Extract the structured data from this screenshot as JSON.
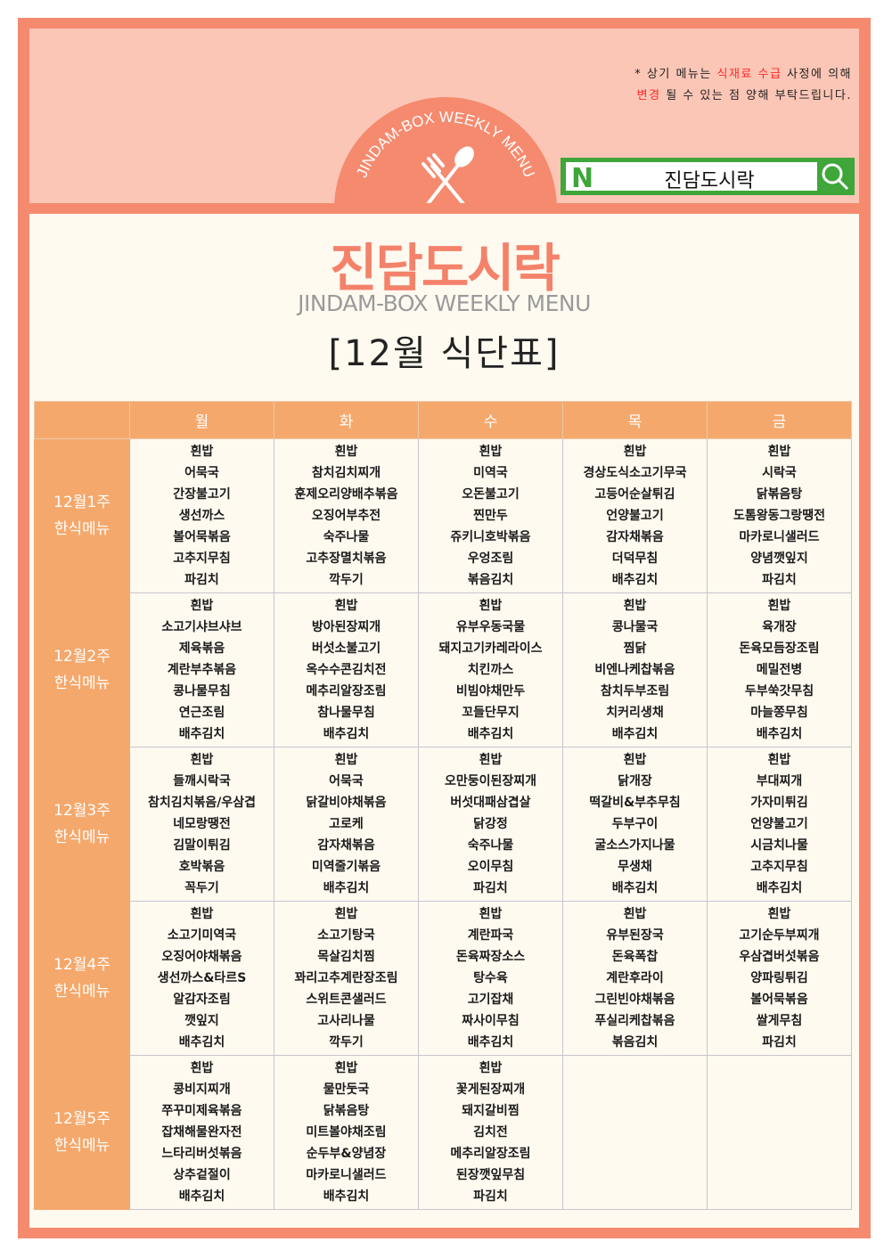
{
  "notice": {
    "line1_a": "* 상기 메뉴는 ",
    "line1_red": "식재료 수급",
    "line1_b": " 사정에 의해",
    "line2_red": "변경",
    "line2_b": " 될 수 있는 점 양해 부탁드립니다."
  },
  "badge": {
    "arc_text": "JINDAM-BOX WEEKLY MENU",
    "icon": "fork-spoon-icon"
  },
  "search": {
    "logo": "N",
    "query": "진담도시락",
    "icon": "search-icon"
  },
  "brand": {
    "logo": "진담도시락",
    "subtitle": "JINDAM-BOX WEEKLY MENU",
    "title": "[12월 식단표]"
  },
  "colors": {
    "frame": "#f58a6f",
    "header_bg": "#fcc6b6",
    "body_bg": "#fffaf0",
    "table_header": "#f5a86c",
    "search_green": "#3fa63a",
    "notice_red": "#ff2a2a"
  },
  "days": [
    "월",
    "화",
    "수",
    "목",
    "금"
  ],
  "weeks": [
    {
      "label1": "12월1주",
      "label2": "한식메뉴",
      "days": [
        [
          "흰밥",
          "어묵국",
          "간장불고기",
          "생선까스",
          "볼어묵볶음",
          "고추지무침",
          "파김치"
        ],
        [
          "흰밥",
          "참치김치찌개",
          "훈제오리양배추볶음",
          "오징어부추전",
          "숙주나물",
          "고추장멸치볶음",
          "깍두기"
        ],
        [
          "흰밥",
          "미역국",
          "오돈불고기",
          "찐만두",
          "쥬키니호박볶음",
          "우엉조림",
          "볶음김치"
        ],
        [
          "흰밥",
          "경상도식소고기무국",
          "고등어순살튀김",
          "언양불고기",
          "감자채볶음",
          "더덕무침",
          "배추김치"
        ],
        [
          "흰밥",
          "시락국",
          "닭볶음탕",
          "도톰왕동그랑땡전",
          "마카로니샐러드",
          "양념깻잎지",
          "파김치"
        ]
      ]
    },
    {
      "label1": "12월2주",
      "label2": "한식메뉴",
      "days": [
        [
          "흰밥",
          "소고기샤브샤브",
          "제육볶음",
          "계란부추볶음",
          "콩나물무침",
          "연근조림",
          "배추김치"
        ],
        [
          "흰밥",
          "방아된장찌개",
          "버섯소불고기",
          "옥수수콘김치전",
          "메추리알장조림",
          "참나물무침",
          "배추김치"
        ],
        [
          "흰밥",
          "유부우동국물",
          "돼지고기카레라이스",
          "치킨까스",
          "비빔야채만두",
          "꼬들단무지",
          "배추김치"
        ],
        [
          "흰밥",
          "콩나물국",
          "찜닭",
          "비엔나케찹볶음",
          "참치두부조림",
          "치커리생채",
          "배추김치"
        ],
        [
          "흰밥",
          "육개장",
          "돈육모듬장조림",
          "메밀전병",
          "두부쑥갓무침",
          "마늘쫑무침",
          "배추김치"
        ]
      ]
    },
    {
      "label1": "12월3주",
      "label2": "한식메뉴",
      "days": [
        [
          "흰밥",
          "들깨시락국",
          "참치김치볶음/우삼겹",
          "네모랑땡전",
          "김말이튀김",
          "호박볶음",
          "꼭두기"
        ],
        [
          "흰밥",
          "어묵국",
          "닭갈비야채볶음",
          "고로케",
          "감자채볶음",
          "미역줄기볶음",
          "배추김치"
        ],
        [
          "흰밥",
          "오만둥이된장찌개",
          "버섯대패삼겹살",
          "닭강정",
          "숙주나물",
          "오이무침",
          "파김치"
        ],
        [
          "흰밥",
          "닭개장",
          "떡갈비&부추무침",
          "두부구이",
          "굴소스가지나물",
          "무생채",
          "배추김치"
        ],
        [
          "흰밥",
          "부대찌개",
          "가자미튀김",
          "언양불고기",
          "시금치나물",
          "고추지무침",
          "배추김치"
        ]
      ]
    },
    {
      "label1": "12월4주",
      "label2": "한식메뉴",
      "days": [
        [
          "흰밥",
          "소고기미역국",
          "오징어야채볶음",
          "생선까스&타르S",
          "알감자조림",
          "깻잎지",
          "배추김치"
        ],
        [
          "흰밥",
          "소고기탕국",
          "목살김치찜",
          "꽈리고추계란장조림",
          "스위트콘샐러드",
          "고사리나물",
          "깍두기"
        ],
        [
          "흰밥",
          "계란파국",
          "돈육짜장소스",
          "탕수육",
          "고기잡채",
          "짜사이무침",
          "배추김치"
        ],
        [
          "흰밥",
          "유부된장국",
          "돈육폭찹",
          "계란후라이",
          "그린빈야채볶음",
          "푸실리케찹볶음",
          "볶음김치"
        ],
        [
          "흰밥",
          "고기순두부찌개",
          "우삼겹버섯볶음",
          "양파링튀김",
          "볼어묵볶음",
          "쌀게무침",
          "파김치"
        ]
      ]
    },
    {
      "label1": "12월5주",
      "label2": "한식메뉴",
      "days": [
        [
          "흰밥",
          "콩비지찌개",
          "쭈꾸미제육볶음",
          "잡채해물완자전",
          "느타리버섯볶음",
          "상추겉절이",
          "배추김치"
        ],
        [
          "흰밥",
          "물만둣국",
          "닭볶음탕",
          "미트볼야채조림",
          "순두부&양념장",
          "마카로니샐러드",
          "배추김치"
        ],
        [
          "흰밥",
          "꽃게된장찌개",
          "돼지갈비찜",
          "김치전",
          "메추리알장조림",
          "된장깻잎무침",
          "파김치"
        ],
        [],
        []
      ]
    }
  ]
}
